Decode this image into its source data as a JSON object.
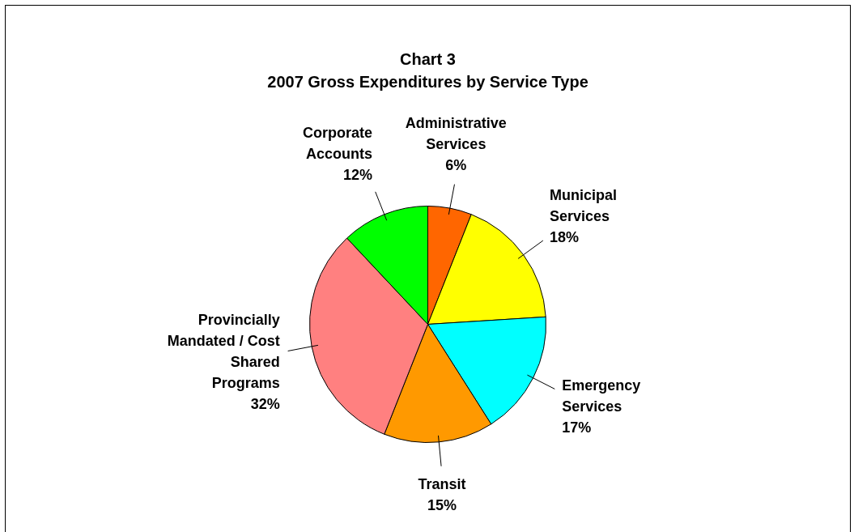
{
  "chart_data": {
    "type": "pie",
    "title": "Chart 3",
    "subtitle": "2007 Gross Expenditures by Service Type",
    "categories": [
      "Administrative Services",
      "Municipal Services",
      "Emergency Services",
      "Transit",
      "Provincially Mandated / Cost Shared Programs",
      "Corporate Accounts"
    ],
    "values": [
      6,
      18,
      17,
      15,
      32,
      12
    ],
    "colors": [
      "#ff6600",
      "#ffff00",
      "#00ffff",
      "#ff9900",
      "#ff8080",
      "#00ff00"
    ],
    "value_labels": [
      "6%",
      "18%",
      "17%",
      "15%",
      "32%",
      "12%"
    ],
    "legend": false
  }
}
